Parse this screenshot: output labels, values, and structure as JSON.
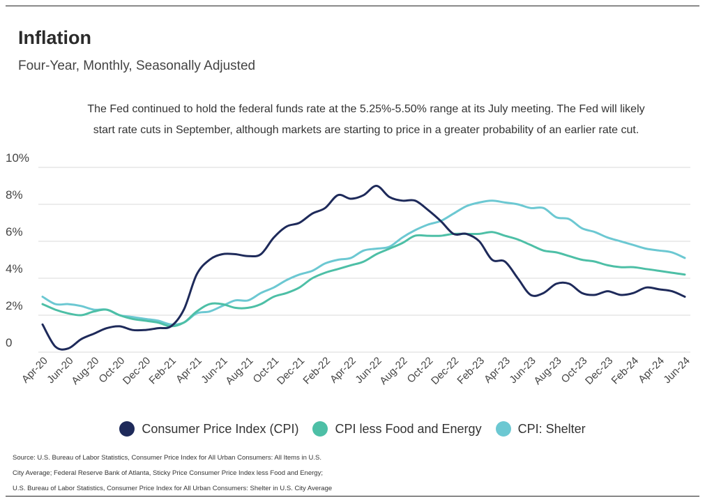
{
  "header": {
    "title": "Inflation",
    "subtitle": "Four-Year, Monthly, Seasonally Adjusted"
  },
  "annotation": {
    "line1": "The Fed continued to hold the federal funds rate at the 5.25%-5.50% range at its July meeting. The Fed will likely",
    "line2": "start rate cuts in September, although markets are starting to price in a greater probability of an earlier rate cut."
  },
  "legend": {
    "items": [
      {
        "label": "Consumer Price Index (CPI)",
        "color": "#1e2a5a"
      },
      {
        "label": "CPI less Food and Energy",
        "color": "#4dbfa6"
      },
      {
        "label": "CPI: Shelter",
        "color": "#6cc8d2"
      }
    ]
  },
  "source": {
    "line1": "Source:  U.S. Bureau of Labor Statistics, Consumer Price Index for All Urban Consumers: All Items in U.S.",
    "line2": "City Average; Federal Reserve Bank of Atlanta, Sticky Price Consumer Price Index less Food and Energy;",
    "line3": "U.S. Bureau of Labor Statistics, Consumer Price Index for All Urban Consumers: Shelter in U.S. City Average"
  },
  "chart_data": {
    "type": "line",
    "ylim": [
      0,
      10
    ],
    "yticks": [
      0,
      2,
      4,
      6,
      8,
      10
    ],
    "ytick_labels": [
      "0",
      "2%",
      "4%",
      "6%",
      "8%",
      "10%"
    ],
    "grid": true,
    "legend_position": "bottom",
    "x": [
      "Apr-20",
      "May-20",
      "Jun-20",
      "Jul-20",
      "Aug-20",
      "Sep-20",
      "Oct-20",
      "Nov-20",
      "Dec-20",
      "Jan-21",
      "Feb-21",
      "Mar-21",
      "Apr-21",
      "May-21",
      "Jun-21",
      "Jul-21",
      "Aug-21",
      "Sep-21",
      "Oct-21",
      "Nov-21",
      "Dec-21",
      "Jan-22",
      "Feb-22",
      "Mar-22",
      "Apr-22",
      "May-22",
      "Jun-22",
      "Jul-22",
      "Aug-22",
      "Sep-22",
      "Oct-22",
      "Nov-22",
      "Dec-22",
      "Jan-23",
      "Feb-23",
      "Mar-23",
      "Apr-23",
      "May-23",
      "Jun-23",
      "Jul-23",
      "Aug-23",
      "Sep-23",
      "Oct-23",
      "Nov-23",
      "Dec-23",
      "Jan-24",
      "Feb-24",
      "Mar-24",
      "Apr-24",
      "May-24",
      "Jun-24"
    ],
    "x_tick_labels": [
      "Apr-20",
      "Jun-20",
      "Aug-20",
      "Oct-20",
      "Dec-20",
      "Feb-21",
      "Apr-21",
      "Jun-21",
      "Aug-21",
      "Oct-21",
      "Dec-21",
      "Feb-22",
      "Apr-22",
      "Jun-22",
      "Aug-22",
      "Oct-22",
      "Dec-22",
      "Feb-23",
      "Apr-23",
      "Jun-23",
      "Aug-23",
      "Oct-23",
      "Dec-23",
      "Feb-24",
      "Apr-24",
      "Jun-24"
    ],
    "series": [
      {
        "name": "Consumer Price Index (CPI)",
        "color": "#1e2a5a",
        "values": [
          1.5,
          0.3,
          0.2,
          0.7,
          1.0,
          1.3,
          1.4,
          1.2,
          1.2,
          1.3,
          1.4,
          2.3,
          4.2,
          5.0,
          5.3,
          5.3,
          5.2,
          5.3,
          6.2,
          6.8,
          7.0,
          7.5,
          7.8,
          8.5,
          8.3,
          8.5,
          9.0,
          8.4,
          8.2,
          8.2,
          7.7,
          7.1,
          6.4,
          6.4,
          6.0,
          5.0,
          4.9,
          4.0,
          3.1,
          3.2,
          3.7,
          3.7,
          3.2,
          3.1,
          3.3,
          3.1,
          3.2,
          3.5,
          3.4,
          3.3,
          3.0
        ]
      },
      {
        "name": "CPI less Food and Energy",
        "color": "#4dbfa6",
        "values": [
          2.6,
          2.3,
          2.1,
          2.0,
          2.2,
          2.3,
          2.0,
          1.8,
          1.7,
          1.6,
          1.4,
          1.6,
          2.2,
          2.6,
          2.6,
          2.4,
          2.4,
          2.6,
          3.0,
          3.2,
          3.5,
          4.0,
          4.3,
          4.5,
          4.7,
          4.9,
          5.3,
          5.6,
          5.9,
          6.3,
          6.3,
          6.3,
          6.4,
          6.4,
          6.4,
          6.5,
          6.3,
          6.1,
          5.8,
          5.5,
          5.4,
          5.2,
          5.0,
          4.9,
          4.7,
          4.6,
          4.6,
          4.5,
          4.4,
          4.3,
          4.2
        ]
      },
      {
        "name": "CPI: Shelter",
        "color": "#6cc8d2",
        "values": [
          3.0,
          2.6,
          2.6,
          2.5,
          2.3,
          2.3,
          2.0,
          1.9,
          1.8,
          1.7,
          1.5,
          1.6,
          2.1,
          2.2,
          2.5,
          2.8,
          2.8,
          3.2,
          3.5,
          3.9,
          4.2,
          4.4,
          4.8,
          5.0,
          5.1,
          5.5,
          5.6,
          5.7,
          6.2,
          6.6,
          6.9,
          7.1,
          7.5,
          7.9,
          8.1,
          8.2,
          8.1,
          8.0,
          7.8,
          7.8,
          7.3,
          7.2,
          6.7,
          6.5,
          6.2,
          6.0,
          5.8,
          5.6,
          5.5,
          5.4,
          5.1
        ]
      }
    ]
  }
}
